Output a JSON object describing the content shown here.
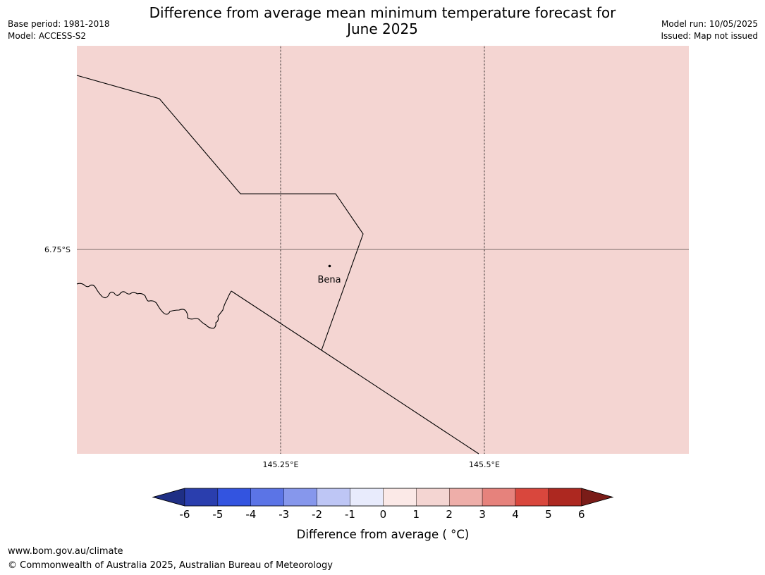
{
  "header": {
    "title_line1": "Difference from average mean minimum temperature forecast for",
    "title_line2": "June 2025",
    "base_period": "Base period: 1981-2018",
    "model": "Model: ACCESS-S2",
    "model_run": "Model run: 10/05/2025",
    "issued": "Issued: Map not issued"
  },
  "map": {
    "fill_color": "#f4d5d2",
    "lat_labels": [
      "6.75°S"
    ],
    "lon_labels": [
      "145.25°E",
      "145.5°E"
    ],
    "place": {
      "name": "Bena"
    }
  },
  "legend": {
    "title": "Difference from average ( °C)",
    "tick_labels": [
      "-6",
      "-5",
      "-4",
      "-3",
      "-2",
      "-1",
      "0",
      "1",
      "2",
      "3",
      "4",
      "5",
      "6"
    ],
    "colors": [
      "#1f2f85",
      "#2a3eae",
      "#3354e0",
      "#5b74e6",
      "#8697ec",
      "#bec6f5",
      "#e8ebfc",
      "#fbe9e7",
      "#f4d5d2",
      "#eeaea9",
      "#e6827c",
      "#d9473d",
      "#ad2820",
      "#7a1c18"
    ]
  },
  "footer": {
    "url": "www.bom.gov.au/climate",
    "copyright": "© Commonwealth of Australia 2025, Australian Bureau of Meteorology"
  }
}
